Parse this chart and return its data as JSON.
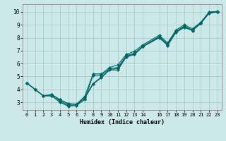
{
  "xlabel": "Humidex (Indice chaleur)",
  "ylabel": "",
  "bg_color": "#cce8e8",
  "grid_color": "#aacccc",
  "line_color": "#006666",
  "marker_color": "#006666",
  "xlim": [
    -0.5,
    23.5
  ],
  "ylim": [
    2.4,
    10.6
  ],
  "xticks": [
    0,
    1,
    2,
    3,
    4,
    5,
    6,
    7,
    8,
    9,
    10,
    11,
    12,
    13,
    14,
    16,
    17,
    18,
    19,
    20,
    21,
    22,
    23
  ],
  "yticks": [
    3,
    4,
    5,
    6,
    7,
    8,
    9,
    10
  ],
  "lines": [
    {
      "x": [
        0,
        1,
        2,
        3,
        4,
        5,
        6,
        7,
        8,
        9,
        10,
        11,
        12,
        13,
        14,
        16,
        17,
        18,
        19,
        20,
        21,
        22,
        23
      ],
      "y": [
        4.5,
        4.0,
        3.5,
        3.5,
        3.0,
        2.7,
        2.75,
        3.2,
        5.1,
        5.1,
        5.6,
        5.7,
        6.6,
        6.8,
        7.35,
        8.1,
        7.5,
        8.5,
        8.9,
        8.6,
        9.15,
        9.95,
        10.0
      ]
    },
    {
      "x": [
        0,
        1,
        2,
        3,
        4,
        5,
        6,
        7,
        8,
        9,
        10,
        11,
        12,
        13,
        14,
        16,
        17,
        18,
        19,
        20,
        21,
        22,
        23
      ],
      "y": [
        4.5,
        4.0,
        3.5,
        3.5,
        3.1,
        2.75,
        2.8,
        3.3,
        4.4,
        4.9,
        5.5,
        5.5,
        6.5,
        6.7,
        7.3,
        8.0,
        7.4,
        8.4,
        8.8,
        8.55,
        9.1,
        9.9,
        10.0
      ]
    },
    {
      "x": [
        0,
        1,
        2,
        3,
        4,
        5,
        6,
        7,
        8,
        9,
        10,
        11,
        12,
        13,
        14,
        16,
        17,
        18,
        19,
        20,
        21,
        22,
        23
      ],
      "y": [
        4.5,
        4.0,
        3.5,
        3.6,
        3.2,
        2.9,
        2.85,
        3.45,
        5.2,
        5.2,
        5.7,
        5.9,
        6.7,
        6.95,
        7.45,
        8.2,
        7.6,
        8.6,
        9.0,
        8.7,
        9.2,
        10.0,
        10.05
      ]
    },
    {
      "x": [
        0,
        1,
        2,
        3,
        4,
        5,
        6,
        7,
        8,
        9,
        10,
        11,
        12,
        13,
        14,
        16,
        17,
        18,
        19,
        20,
        21,
        22,
        23
      ],
      "y": [
        4.5,
        4.0,
        3.5,
        3.6,
        3.2,
        2.85,
        2.85,
        3.4,
        4.45,
        4.95,
        5.55,
        5.6,
        6.55,
        6.75,
        7.32,
        8.05,
        7.45,
        8.45,
        8.85,
        8.6,
        9.12,
        9.92,
        10.02
      ]
    }
  ]
}
